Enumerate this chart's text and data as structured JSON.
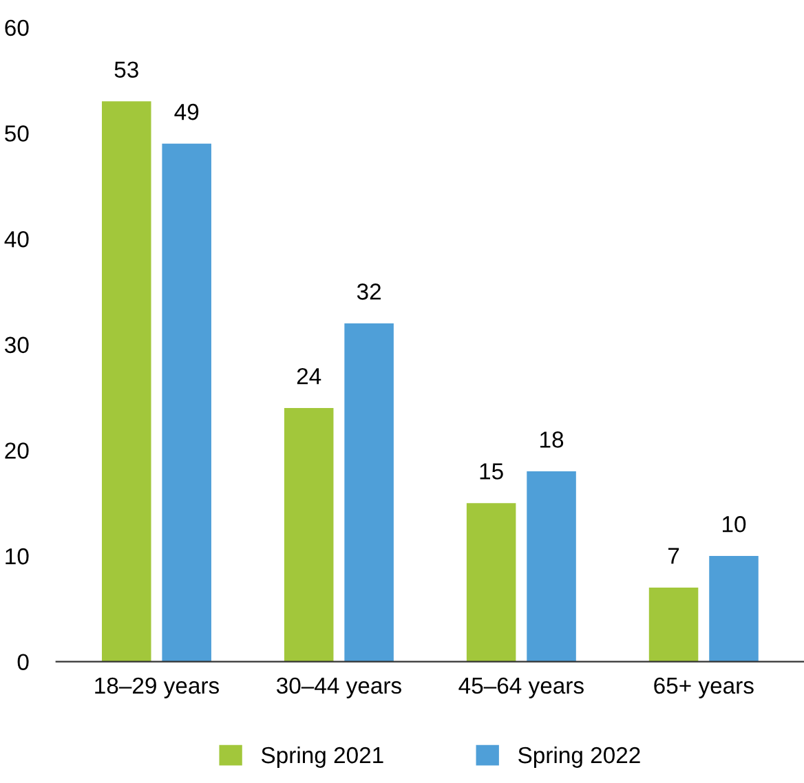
{
  "chart_data": {
    "type": "bar",
    "categories": [
      "18–29 years",
      "30–44 years",
      "45–64 years",
      "65+ years"
    ],
    "series": [
      {
        "name": "Spring 2021",
        "color": "#a2c73b",
        "values": [
          53,
          24,
          15,
          7
        ]
      },
      {
        "name": "Spring 2022",
        "color": "#4f9fd8",
        "values": [
          49,
          32,
          18,
          10
        ]
      }
    ],
    "ylim": [
      0,
      60
    ],
    "yticks": [
      0,
      10,
      20,
      30,
      40,
      50,
      60
    ],
    "data_labels": true,
    "grid": false,
    "legend": "bottom"
  }
}
